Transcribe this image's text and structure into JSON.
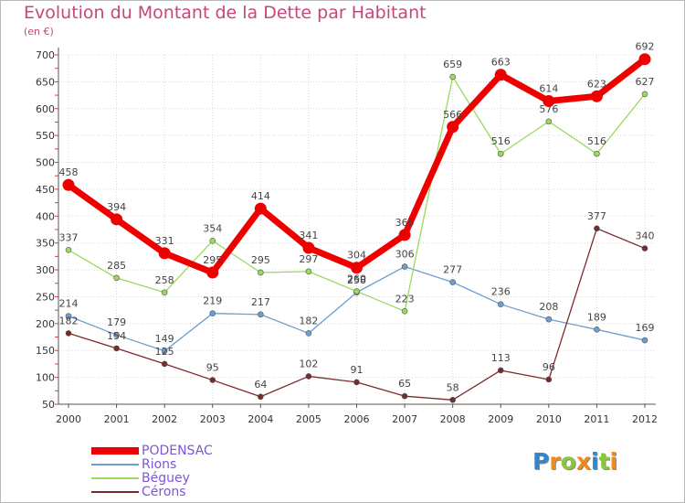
{
  "chart_data": {
    "type": "line",
    "title": "Evolution du Montant de la Dette par Habitant",
    "subtitle": "(en €)",
    "xlabel": "",
    "ylabel": "",
    "x": [
      "2000",
      "2001",
      "2002",
      "2003",
      "2004",
      "2005",
      "2006",
      "2007",
      "2008",
      "2009",
      "2010",
      "2011",
      "2012"
    ],
    "ylim": [
      50,
      700
    ],
    "yticks": [
      50,
      100,
      150,
      200,
      250,
      300,
      350,
      400,
      450,
      500,
      550,
      600,
      650,
      700
    ],
    "grid": true,
    "legend_position": "bottom-left",
    "series": [
      {
        "name": "PODENSAC",
        "color": "#ee0000",
        "values": [
          458,
          394,
          331,
          295,
          414,
          341,
          304,
          365,
          566,
          663,
          614,
          623,
          692
        ]
      },
      {
        "name": "Rions",
        "color": "#6c9fce",
        "values": [
          214,
          179,
          149,
          219,
          217,
          182,
          258,
          306,
          277,
          236,
          208,
          189,
          169
        ]
      },
      {
        "name": "Béguey",
        "color": "#9ad95c",
        "values": [
          337,
          285,
          258,
          354,
          295,
          297,
          260,
          223,
          659,
          516,
          576,
          516,
          627
        ]
      },
      {
        "name": "Cérons",
        "color": "#7a2a2a",
        "values": [
          182,
          154,
          125,
          95,
          64,
          102,
          91,
          65,
          58,
          113,
          96,
          377,
          340
        ]
      }
    ]
  },
  "brand": {
    "letters": [
      "P",
      "r",
      "o",
      "x",
      "i",
      "t",
      "i"
    ],
    "colors": [
      "#2f87cf",
      "#f08a1a",
      "#8cc63f",
      "#f08a1a",
      "#2f87cf",
      "#8cc63f",
      "#f08a1a"
    ]
  }
}
